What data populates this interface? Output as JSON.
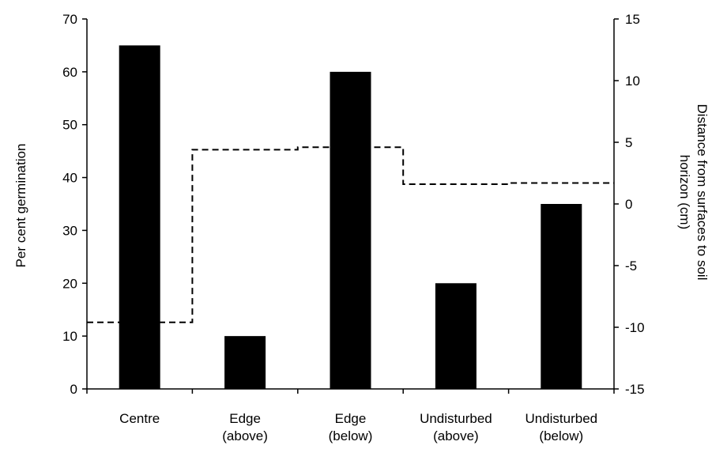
{
  "chart_data": {
    "type": "bar",
    "title": "",
    "categories": [
      [
        "Centre"
      ],
      [
        "Edge",
        "(above)"
      ],
      [
        "Edge",
        "(below)"
      ],
      [
        "Undisturbed",
        "(above)"
      ],
      [
        "Undisturbed",
        "(below)"
      ]
    ],
    "y_left": {
      "label": "Per cent germination",
      "range": [
        0,
        70
      ],
      "ticks": [
        0,
        10,
        20,
        30,
        40,
        50,
        60,
        70
      ]
    },
    "y_right": {
      "label_lines": [
        "Distance from surfaces to soil",
        "horizon (cm)"
      ],
      "range": [
        -15,
        15
      ],
      "ticks": [
        -15,
        -10,
        -5,
        0,
        5,
        10,
        15
      ]
    },
    "series": [
      {
        "type": "bar",
        "axis": "left",
        "values": [
          65,
          10,
          60,
          20,
          35
        ]
      },
      {
        "type": "step-line",
        "axis": "right",
        "style": "dashed",
        "values": [
          -9.6,
          4.4,
          4.6,
          1.6,
          1.7
        ]
      }
    ],
    "grid": false,
    "legend": "none"
  }
}
